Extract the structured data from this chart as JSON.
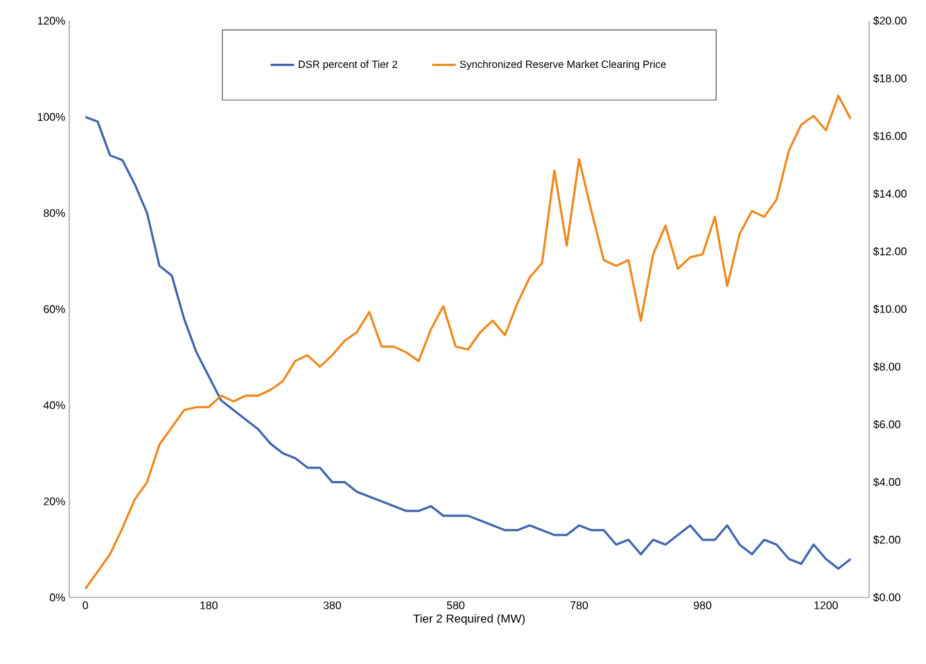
{
  "chart_data": {
    "type": "line",
    "xlabel": "Tier 2 Required (MW)",
    "categories": [
      "0",
      null,
      null,
      null,
      null,
      null,
      null,
      null,
      null,
      null,
      "180",
      null,
      null,
      null,
      null,
      null,
      null,
      null,
      null,
      null,
      "380",
      null,
      null,
      null,
      null,
      null,
      null,
      null,
      null,
      null,
      "580",
      null,
      null,
      null,
      null,
      null,
      null,
      null,
      null,
      null,
      "780",
      null,
      null,
      null,
      null,
      null,
      null,
      null,
      null,
      null,
      "980",
      null,
      null,
      null,
      null,
      null,
      null,
      null,
      null,
      null,
      "1200",
      null,
      null
    ],
    "series": [
      {
        "name": "DSR percent of Tier 2",
        "color": "#4166ad",
        "values": [
          100,
          99,
          92,
          91,
          86,
          80,
          69,
          67,
          58,
          51,
          46,
          41,
          39,
          37,
          35,
          32,
          30,
          29,
          27,
          27,
          24,
          24,
          22,
          21,
          20,
          19,
          18,
          18,
          19,
          17,
          17,
          17,
          16,
          15,
          14,
          14,
          15,
          14,
          13,
          13,
          15,
          14,
          14,
          11,
          12,
          9,
          12,
          11,
          13,
          15,
          12,
          12,
          15,
          11,
          9,
          12,
          11,
          8,
          7,
          11,
          8,
          6,
          8
        ]
      },
      {
        "name": "Synchronized Reserve Market Clearing Price",
        "color": "#f0891e",
        "axis": "y2",
        "values": [
          0.3,
          0.9,
          1.5,
          2.4,
          3.4,
          4.0,
          5.3,
          5.9,
          6.5,
          6.6,
          6.6,
          7.0,
          6.8,
          7.0,
          7.0,
          7.2,
          7.5,
          8.2,
          8.4,
          8.0,
          8.4,
          8.9,
          9.2,
          9.9,
          8.7,
          8.7,
          8.5,
          8.2,
          9.3,
          10.1,
          8.7,
          8.6,
          9.2,
          9.6,
          9.1,
          10.2,
          11.1,
          11.6,
          14.8,
          12.2,
          15.2,
          13.4,
          11.7,
          11.5,
          11.7,
          9.6,
          11.9,
          12.9,
          11.4,
          11.8,
          11.9,
          13.2,
          10.8,
          12.6,
          13.4,
          13.2,
          13.8,
          15.5,
          16.4,
          16.7,
          16.2,
          17.4,
          16.6
        ]
      }
    ],
    "ylim": [
      0,
      120
    ],
    "yticks": [
      {
        "value": 0,
        "label": "0%"
      },
      {
        "value": 20,
        "label": "20%"
      },
      {
        "value": 40,
        "label": "40%"
      },
      {
        "value": 60,
        "label": "60%"
      },
      {
        "value": 80,
        "label": "80%"
      },
      {
        "value": 100,
        "label": "100%"
      },
      {
        "value": 120,
        "label": "120%"
      }
    ],
    "y2lim": [
      0,
      20
    ],
    "y2ticks": [
      {
        "value": 0,
        "label": "$0.00"
      },
      {
        "value": 2,
        "label": "$2.00"
      },
      {
        "value": 4,
        "label": "$4.00"
      },
      {
        "value": 6,
        "label": "$6.00"
      },
      {
        "value": 8,
        "label": "$8.00"
      },
      {
        "value": 10,
        "label": "$10.00"
      },
      {
        "value": 12,
        "label": "$12.00"
      },
      {
        "value": 14,
        "label": "$14.00"
      },
      {
        "value": 16,
        "label": "$16.00"
      },
      {
        "value": 18,
        "label": "$18.00"
      },
      {
        "value": 20,
        "label": "$20.00"
      }
    ],
    "legend": "top",
    "grid": false,
    "marker": "none",
    "line_style": "solid"
  }
}
